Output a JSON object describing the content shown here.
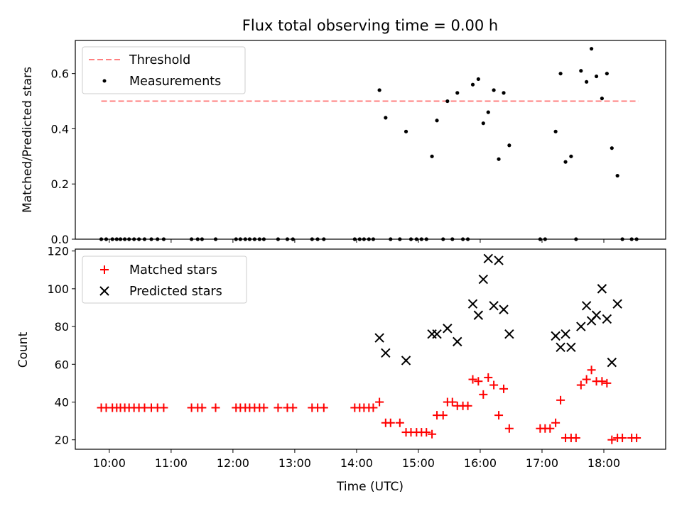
{
  "chart_data": [
    {
      "type": "scatter",
      "title": "Flux total observing time = 0.00 h",
      "xlabel": "",
      "ylabel": "Matched/Predicted stars",
      "xlim_hours": [
        9.45,
        19.0
      ],
      "ylim": [
        0,
        0.72
      ],
      "yticks": [
        0.0,
        0.2,
        0.4,
        0.6
      ],
      "ytick_labels": [
        "0.0",
        "0.2",
        "0.4",
        "0.6"
      ],
      "xticks": [
        10,
        11,
        12,
        13,
        14,
        15,
        16,
        17,
        18
      ],
      "grid": false,
      "legend_position": "top-left",
      "threshold": {
        "name": "Threshold",
        "y": 0.5,
        "x_range": [
          9.87,
          18.56
        ],
        "color": "#ff8080",
        "style": "dashed"
      },
      "series": [
        {
          "name": "Measurements",
          "color": "#000000",
          "marker": "dot",
          "points": [
            [
              9.87,
              0
            ],
            [
              9.95,
              0
            ],
            [
              10.05,
              0
            ],
            [
              10.12,
              0
            ],
            [
              10.18,
              0
            ],
            [
              10.25,
              0
            ],
            [
              10.32,
              0
            ],
            [
              10.4,
              0
            ],
            [
              10.48,
              0
            ],
            [
              10.57,
              0
            ],
            [
              10.68,
              0
            ],
            [
              10.78,
              0
            ],
            [
              10.88,
              0
            ],
            [
              11.33,
              0
            ],
            [
              11.43,
              0
            ],
            [
              11.5,
              0
            ],
            [
              11.72,
              0
            ],
            [
              12.05,
              0
            ],
            [
              12.12,
              0
            ],
            [
              12.2,
              0
            ],
            [
              12.27,
              0
            ],
            [
              12.35,
              0
            ],
            [
              12.43,
              0
            ],
            [
              12.5,
              0
            ],
            [
              12.73,
              0
            ],
            [
              12.88,
              0
            ],
            [
              12.97,
              0
            ],
            [
              13.28,
              0
            ],
            [
              13.37,
              0
            ],
            [
              13.47,
              0
            ],
            [
              13.97,
              0
            ],
            [
              14.05,
              0
            ],
            [
              14.12,
              0
            ],
            [
              14.2,
              0
            ],
            [
              14.27,
              0
            ],
            [
              14.37,
              0.54
            ],
            [
              14.47,
              0.44
            ],
            [
              14.55,
              0
            ],
            [
              14.7,
              0
            ],
            [
              14.8,
              0.39
            ],
            [
              14.88,
              0
            ],
            [
              14.97,
              0
            ],
            [
              15.05,
              0
            ],
            [
              15.13,
              0
            ],
            [
              15.22,
              0.3
            ],
            [
              15.3,
              0.43
            ],
            [
              15.4,
              0
            ],
            [
              15.47,
              0.5
            ],
            [
              15.55,
              0
            ],
            [
              15.63,
              0.53
            ],
            [
              15.72,
              0
            ],
            [
              15.8,
              0
            ],
            [
              15.88,
              0.56
            ],
            [
              15.97,
              0.58
            ],
            [
              16.05,
              0.42
            ],
            [
              16.13,
              0.46
            ],
            [
              16.22,
              0.54
            ],
            [
              16.3,
              0.29
            ],
            [
              16.38,
              0.53
            ],
            [
              16.47,
              0.34
            ],
            [
              16.97,
              0
            ],
            [
              17.05,
              0
            ],
            [
              17.22,
              0.39
            ],
            [
              17.3,
              0.6
            ],
            [
              17.38,
              0.28
            ],
            [
              17.47,
              0.3
            ],
            [
              17.55,
              0
            ],
            [
              17.63,
              0.61
            ],
            [
              17.72,
              0.57
            ],
            [
              17.8,
              0.69
            ],
            [
              17.88,
              0.59
            ],
            [
              17.97,
              0.51
            ],
            [
              18.05,
              0.6
            ],
            [
              18.13,
              0.33
            ],
            [
              18.22,
              0.23
            ],
            [
              18.3,
              0
            ],
            [
              18.45,
              0
            ],
            [
              18.53,
              0
            ]
          ]
        }
      ]
    },
    {
      "type": "scatter",
      "title": "",
      "xlabel": "Time (UTC)",
      "ylabel": "Count",
      "xlim_hours": [
        9.45,
        19.0
      ],
      "ylim": [
        15,
        121
      ],
      "yticks": [
        20,
        40,
        60,
        80,
        100,
        120
      ],
      "ytick_labels": [
        "20",
        "40",
        "60",
        "80",
        "100",
        "120"
      ],
      "xticks": [
        10,
        11,
        12,
        13,
        14,
        15,
        16,
        17,
        18
      ],
      "xtick_labels": [
        "10:00",
        "11:00",
        "12:00",
        "13:00",
        "14:00",
        "15:00",
        "16:00",
        "17:00",
        "18:00"
      ],
      "grid": false,
      "legend_position": "top-left",
      "series": [
        {
          "name": "Matched stars",
          "color": "#ff0000",
          "marker": "plus",
          "points": [
            [
              9.87,
              37
            ],
            [
              9.95,
              37
            ],
            [
              10.05,
              37
            ],
            [
              10.12,
              37
            ],
            [
              10.18,
              37
            ],
            [
              10.25,
              37
            ],
            [
              10.32,
              37
            ],
            [
              10.4,
              37
            ],
            [
              10.48,
              37
            ],
            [
              10.57,
              37
            ],
            [
              10.68,
              37
            ],
            [
              10.78,
              37
            ],
            [
              10.88,
              37
            ],
            [
              11.33,
              37
            ],
            [
              11.43,
              37
            ],
            [
              11.5,
              37
            ],
            [
              11.72,
              37
            ],
            [
              12.05,
              37
            ],
            [
              12.12,
              37
            ],
            [
              12.2,
              37
            ],
            [
              12.27,
              37
            ],
            [
              12.35,
              37
            ],
            [
              12.43,
              37
            ],
            [
              12.5,
              37
            ],
            [
              12.73,
              37
            ],
            [
              12.88,
              37
            ],
            [
              12.97,
              37
            ],
            [
              13.28,
              37
            ],
            [
              13.37,
              37
            ],
            [
              13.47,
              37
            ],
            [
              13.97,
              37
            ],
            [
              14.05,
              37
            ],
            [
              14.12,
              37
            ],
            [
              14.2,
              37
            ],
            [
              14.27,
              37
            ],
            [
              14.37,
              40
            ],
            [
              14.47,
              29
            ],
            [
              14.55,
              29
            ],
            [
              14.7,
              29
            ],
            [
              14.8,
              24
            ],
            [
              14.88,
              24
            ],
            [
              14.97,
              24
            ],
            [
              15.05,
              24
            ],
            [
              15.13,
              24
            ],
            [
              15.22,
              23
            ],
            [
              15.3,
              33
            ],
            [
              15.4,
              33
            ],
            [
              15.47,
              40
            ],
            [
              15.55,
              40
            ],
            [
              15.63,
              38
            ],
            [
              15.72,
              38
            ],
            [
              15.8,
              38
            ],
            [
              15.88,
              52
            ],
            [
              15.97,
              51
            ],
            [
              16.05,
              44
            ],
            [
              16.13,
              53
            ],
            [
              16.22,
              49
            ],
            [
              16.3,
              33
            ],
            [
              16.38,
              47
            ],
            [
              16.47,
              26
            ],
            [
              16.97,
              26
            ],
            [
              17.05,
              26
            ],
            [
              17.13,
              26
            ],
            [
              17.22,
              29
            ],
            [
              17.3,
              41
            ],
            [
              17.38,
              21
            ],
            [
              17.47,
              21
            ],
            [
              17.55,
              21
            ],
            [
              17.63,
              49
            ],
            [
              17.72,
              52
            ],
            [
              17.8,
              57
            ],
            [
              17.88,
              51
            ],
            [
              17.97,
              51
            ],
            [
              18.05,
              50
            ],
            [
              18.13,
              20
            ],
            [
              18.22,
              21
            ],
            [
              18.3,
              21
            ],
            [
              18.45,
              21
            ],
            [
              18.53,
              21
            ]
          ]
        },
        {
          "name": "Predicted stars",
          "color": "#000000",
          "marker": "x",
          "points": [
            [
              14.37,
              74
            ],
            [
              14.47,
              66
            ],
            [
              14.8,
              62
            ],
            [
              15.22,
              76
            ],
            [
              15.3,
              76
            ],
            [
              15.47,
              79
            ],
            [
              15.63,
              72
            ],
            [
              15.88,
              92
            ],
            [
              15.97,
              86
            ],
            [
              16.05,
              105
            ],
            [
              16.13,
              116
            ],
            [
              16.22,
              91
            ],
            [
              16.3,
              115
            ],
            [
              16.38,
              89
            ],
            [
              16.47,
              76
            ],
            [
              17.22,
              75
            ],
            [
              17.3,
              69
            ],
            [
              17.38,
              76
            ],
            [
              17.47,
              69
            ],
            [
              17.63,
              80
            ],
            [
              17.72,
              91
            ],
            [
              17.8,
              83
            ],
            [
              17.88,
              86
            ],
            [
              17.97,
              100
            ],
            [
              18.05,
              84
            ],
            [
              18.13,
              61
            ],
            [
              18.22,
              92
            ]
          ]
        }
      ]
    }
  ]
}
